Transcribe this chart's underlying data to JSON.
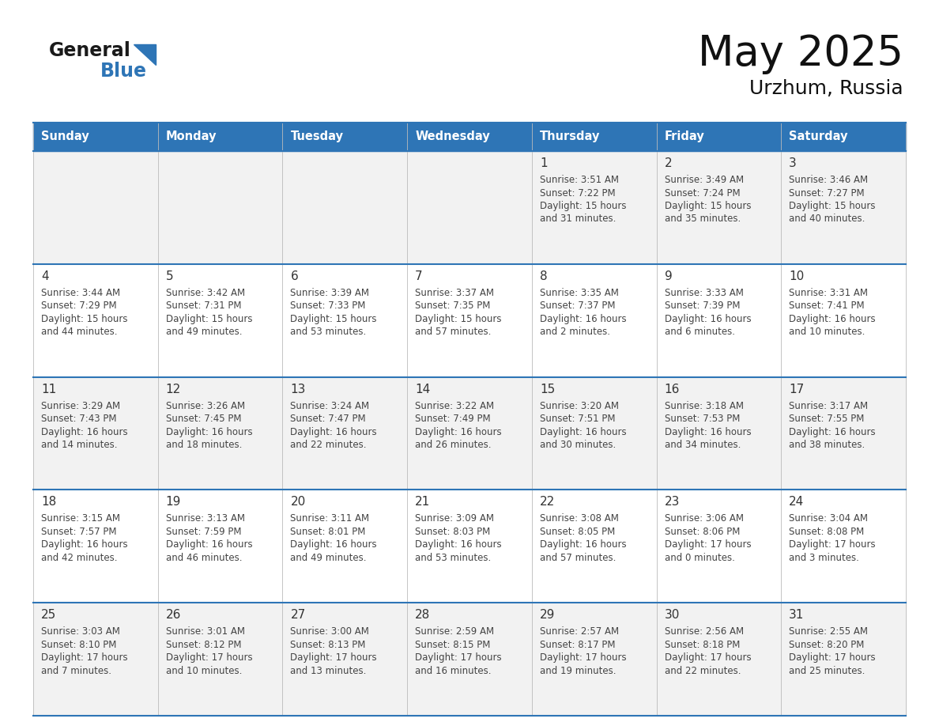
{
  "title": "May 2025",
  "subtitle": "Urzhum, Russia",
  "header_color": "#2E75B6",
  "header_text_color": "#FFFFFF",
  "day_names": [
    "Sunday",
    "Monday",
    "Tuesday",
    "Wednesday",
    "Thursday",
    "Friday",
    "Saturday"
  ],
  "bg_color": "#FFFFFF",
  "cell_bg_row0": "#F2F2F2",
  "cell_bg_row1": "#FFFFFF",
  "separator_color": "#2E75B6",
  "day_num_color": "#333333",
  "cell_text_color": "#444444",
  "calendar": [
    [
      null,
      null,
      null,
      null,
      {
        "day": "1",
        "sunrise": "3:51 AM",
        "sunset": "7:22 PM",
        "daylight_h": "15 hours",
        "daylight_m": "31 minutes"
      },
      {
        "day": "2",
        "sunrise": "3:49 AM",
        "sunset": "7:24 PM",
        "daylight_h": "15 hours",
        "daylight_m": "35 minutes"
      },
      {
        "day": "3",
        "sunrise": "3:46 AM",
        "sunset": "7:27 PM",
        "daylight_h": "15 hours",
        "daylight_m": "40 minutes"
      }
    ],
    [
      {
        "day": "4",
        "sunrise": "3:44 AM",
        "sunset": "7:29 PM",
        "daylight_h": "15 hours",
        "daylight_m": "44 minutes"
      },
      {
        "day": "5",
        "sunrise": "3:42 AM",
        "sunset": "7:31 PM",
        "daylight_h": "15 hours",
        "daylight_m": "49 minutes"
      },
      {
        "day": "6",
        "sunrise": "3:39 AM",
        "sunset": "7:33 PM",
        "daylight_h": "15 hours",
        "daylight_m": "53 minutes"
      },
      {
        "day": "7",
        "sunrise": "3:37 AM",
        "sunset": "7:35 PM",
        "daylight_h": "15 hours",
        "daylight_m": "57 minutes"
      },
      {
        "day": "8",
        "sunrise": "3:35 AM",
        "sunset": "7:37 PM",
        "daylight_h": "16 hours",
        "daylight_m": "2 minutes"
      },
      {
        "day": "9",
        "sunrise": "3:33 AM",
        "sunset": "7:39 PM",
        "daylight_h": "16 hours",
        "daylight_m": "6 minutes"
      },
      {
        "day": "10",
        "sunrise": "3:31 AM",
        "sunset": "7:41 PM",
        "daylight_h": "16 hours",
        "daylight_m": "10 minutes"
      }
    ],
    [
      {
        "day": "11",
        "sunrise": "3:29 AM",
        "sunset": "7:43 PM",
        "daylight_h": "16 hours",
        "daylight_m": "14 minutes"
      },
      {
        "day": "12",
        "sunrise": "3:26 AM",
        "sunset": "7:45 PM",
        "daylight_h": "16 hours",
        "daylight_m": "18 minutes"
      },
      {
        "day": "13",
        "sunrise": "3:24 AM",
        "sunset": "7:47 PM",
        "daylight_h": "16 hours",
        "daylight_m": "22 minutes"
      },
      {
        "day": "14",
        "sunrise": "3:22 AM",
        "sunset": "7:49 PM",
        "daylight_h": "16 hours",
        "daylight_m": "26 minutes"
      },
      {
        "day": "15",
        "sunrise": "3:20 AM",
        "sunset": "7:51 PM",
        "daylight_h": "16 hours",
        "daylight_m": "30 minutes"
      },
      {
        "day": "16",
        "sunrise": "3:18 AM",
        "sunset": "7:53 PM",
        "daylight_h": "16 hours",
        "daylight_m": "34 minutes"
      },
      {
        "day": "17",
        "sunrise": "3:17 AM",
        "sunset": "7:55 PM",
        "daylight_h": "16 hours",
        "daylight_m": "38 minutes"
      }
    ],
    [
      {
        "day": "18",
        "sunrise": "3:15 AM",
        "sunset": "7:57 PM",
        "daylight_h": "16 hours",
        "daylight_m": "42 minutes"
      },
      {
        "day": "19",
        "sunrise": "3:13 AM",
        "sunset": "7:59 PM",
        "daylight_h": "16 hours",
        "daylight_m": "46 minutes"
      },
      {
        "day": "20",
        "sunrise": "3:11 AM",
        "sunset": "8:01 PM",
        "daylight_h": "16 hours",
        "daylight_m": "49 minutes"
      },
      {
        "day": "21",
        "sunrise": "3:09 AM",
        "sunset": "8:03 PM",
        "daylight_h": "16 hours",
        "daylight_m": "53 minutes"
      },
      {
        "day": "22",
        "sunrise": "3:08 AM",
        "sunset": "8:05 PM",
        "daylight_h": "16 hours",
        "daylight_m": "57 minutes"
      },
      {
        "day": "23",
        "sunrise": "3:06 AM",
        "sunset": "8:06 PM",
        "daylight_h": "17 hours",
        "daylight_m": "0 minutes"
      },
      {
        "day": "24",
        "sunrise": "3:04 AM",
        "sunset": "8:08 PM",
        "daylight_h": "17 hours",
        "daylight_m": "3 minutes"
      }
    ],
    [
      {
        "day": "25",
        "sunrise": "3:03 AM",
        "sunset": "8:10 PM",
        "daylight_h": "17 hours",
        "daylight_m": "7 minutes"
      },
      {
        "day": "26",
        "sunrise": "3:01 AM",
        "sunset": "8:12 PM",
        "daylight_h": "17 hours",
        "daylight_m": "10 minutes"
      },
      {
        "day": "27",
        "sunrise": "3:00 AM",
        "sunset": "8:13 PM",
        "daylight_h": "17 hours",
        "daylight_m": "13 minutes"
      },
      {
        "day": "28",
        "sunrise": "2:59 AM",
        "sunset": "8:15 PM",
        "daylight_h": "17 hours",
        "daylight_m": "16 minutes"
      },
      {
        "day": "29",
        "sunrise": "2:57 AM",
        "sunset": "8:17 PM",
        "daylight_h": "17 hours",
        "daylight_m": "19 minutes"
      },
      {
        "day": "30",
        "sunrise": "2:56 AM",
        "sunset": "8:18 PM",
        "daylight_h": "17 hours",
        "daylight_m": "22 minutes"
      },
      {
        "day": "31",
        "sunrise": "2:55 AM",
        "sunset": "8:20 PM",
        "daylight_h": "17 hours",
        "daylight_m": "25 minutes"
      }
    ]
  ]
}
